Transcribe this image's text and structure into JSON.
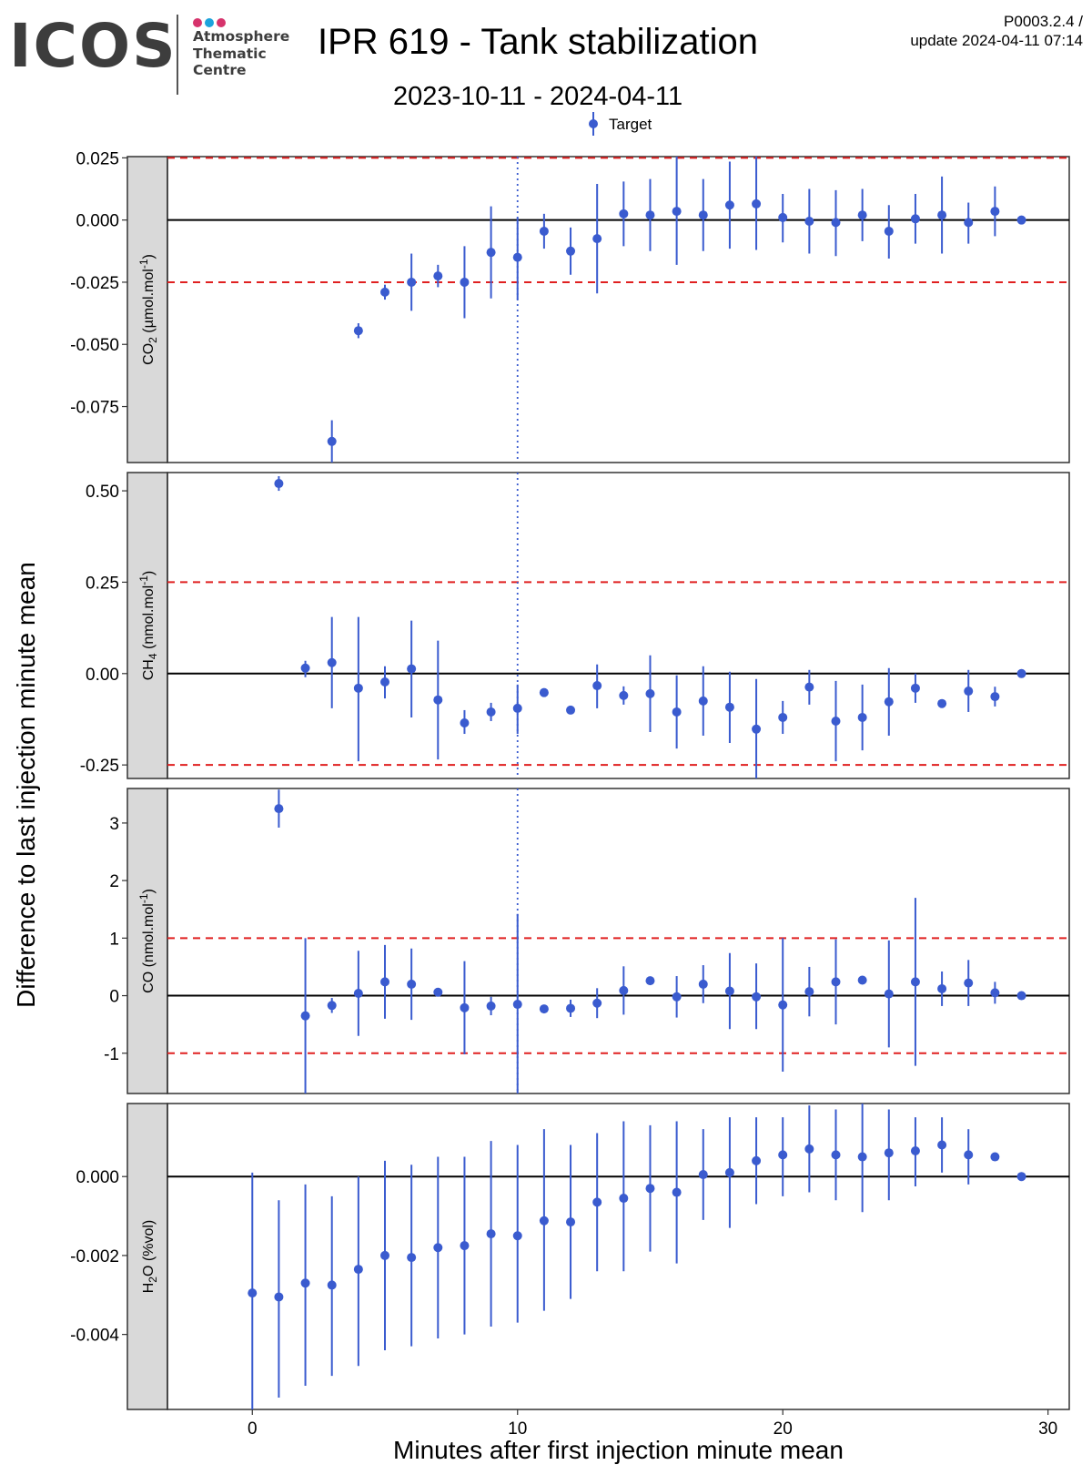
{
  "header": {
    "logo_text": "ICOS",
    "logo_lines": [
      "Atmosphere",
      "Thematic",
      "Centre"
    ],
    "logo_dot_colors": [
      "#d6336c",
      "#1ca3dc",
      "#d6336c"
    ],
    "title": "IPR 619 - Tank stabilization",
    "subtitle": "2023-10-11 - 2024-04-11",
    "code_line1": "P0003.2.4 /",
    "code_line2": "update  2024-04-11 07:14"
  },
  "chart_data": {
    "type": "scatter",
    "legend": {
      "label": "Target",
      "position": "top"
    },
    "xlabel": "Minutes after first injection minute mean",
    "ylabel": "Difference to last injection minute mean",
    "xlim": [
      -3.2,
      30.8
    ],
    "xticks": [
      0,
      10,
      20,
      30
    ],
    "vline_x": 10,
    "colors": {
      "points": "#3a5bcf",
      "threshold": "#e02020",
      "zero": "#000000",
      "strip": "#d9d9d9"
    },
    "panels": [
      {
        "strip": {
          "base": "CO",
          "sub": "2",
          "unit": " (µmol.mol",
          "sup": "-1",
          "close": ")"
        },
        "ylim": [
          -0.0975,
          0.0255
        ],
        "yticks": [
          0.025,
          0.0,
          -0.025,
          -0.05,
          -0.075
        ],
        "ytick_labels": [
          "0.025",
          "0.000",
          "-0.025",
          "-0.050",
          "-0.075"
        ],
        "thresholds": [
          0.025,
          -0.025
        ],
        "points": [
          {
            "x": 3,
            "y": -0.089,
            "lo": -0.0975,
            "hi": -0.0805
          },
          {
            "x": 4,
            "y": -0.0445,
            "lo": -0.0475,
            "hi": -0.0415
          },
          {
            "x": 5,
            "y": -0.029,
            "lo": -0.032,
            "hi": -0.026
          },
          {
            "x": 6,
            "y": -0.025,
            "lo": -0.0365,
            "hi": -0.0135
          },
          {
            "x": 7,
            "y": -0.0225,
            "lo": -0.027,
            "hi": -0.018
          },
          {
            "x": 8,
            "y": -0.025,
            "lo": -0.0395,
            "hi": -0.0105
          },
          {
            "x": 9,
            "y": -0.013,
            "lo": -0.0315,
            "hi": 0.0055
          },
          {
            "x": 10,
            "y": -0.015,
            "lo": -0.032,
            "hi": 0.001
          },
          {
            "x": 11,
            "y": -0.0045,
            "lo": -0.0115,
            "hi": 0.0025
          },
          {
            "x": 12,
            "y": -0.0125,
            "lo": -0.022,
            "hi": -0.003
          },
          {
            "x": 13,
            "y": -0.0075,
            "lo": -0.0295,
            "hi": 0.0145
          },
          {
            "x": 14,
            "y": 0.0025,
            "lo": -0.0105,
            "hi": 0.0155
          },
          {
            "x": 15,
            "y": 0.002,
            "lo": -0.0125,
            "hi": 0.0165
          },
          {
            "x": 16,
            "y": 0.0035,
            "lo": -0.018,
            "hi": 0.0255
          },
          {
            "x": 17,
            "y": 0.002,
            "lo": -0.0125,
            "hi": 0.0165
          },
          {
            "x": 18,
            "y": 0.006,
            "lo": -0.0115,
            "hi": 0.0235
          },
          {
            "x": 19,
            "y": 0.0065,
            "lo": -0.012,
            "hi": 0.0255
          },
          {
            "x": 20,
            "y": 0.001,
            "lo": -0.009,
            "hi": 0.0105
          },
          {
            "x": 21,
            "y": -0.0005,
            "lo": -0.0135,
            "hi": 0.0125
          },
          {
            "x": 22,
            "y": -0.001,
            "lo": -0.0145,
            "hi": 0.012
          },
          {
            "x": 23,
            "y": 0.002,
            "lo": -0.0085,
            "hi": 0.0125
          },
          {
            "x": 24,
            "y": -0.0045,
            "lo": -0.0155,
            "hi": 0.006
          },
          {
            "x": 25,
            "y": 0.0005,
            "lo": -0.0095,
            "hi": 0.0105
          },
          {
            "x": 26,
            "y": 0.002,
            "lo": -0.0135,
            "hi": 0.0175
          },
          {
            "x": 27,
            "y": -0.001,
            "lo": -0.0095,
            "hi": 0.007
          },
          {
            "x": 28,
            "y": 0.0035,
            "lo": -0.0065,
            "hi": 0.0135
          },
          {
            "x": 29,
            "y": 0.0,
            "lo": 0.0,
            "hi": 0.0
          }
        ]
      },
      {
        "strip": {
          "base": "CH",
          "sub": "4",
          "unit": " (nmol.mol",
          "sup": "-1",
          "close": ")"
        },
        "ylim": [
          -0.287,
          0.55
        ],
        "yticks": [
          0.5,
          0.25,
          0.0,
          -0.25
        ],
        "ytick_labels": [
          "0.50",
          "0.25",
          "0.00",
          "-0.25"
        ],
        "thresholds": [
          0.25,
          -0.25
        ],
        "points": [
          {
            "x": 1,
            "y": 0.52,
            "lo": 0.5,
            "hi": 0.54
          },
          {
            "x": 2,
            "y": 0.015,
            "lo": -0.01,
            "hi": 0.035
          },
          {
            "x": 3,
            "y": 0.03,
            "lo": -0.095,
            "hi": 0.155
          },
          {
            "x": 4,
            "y": -0.04,
            "lo": -0.24,
            "hi": 0.155
          },
          {
            "x": 5,
            "y": -0.023,
            "lo": -0.068,
            "hi": 0.02
          },
          {
            "x": 6,
            "y": 0.013,
            "lo": -0.12,
            "hi": 0.145
          },
          {
            "x": 7,
            "y": -0.072,
            "lo": -0.235,
            "hi": 0.09
          },
          {
            "x": 8,
            "y": -0.135,
            "lo": -0.165,
            "hi": -0.1
          },
          {
            "x": 9,
            "y": -0.105,
            "lo": -0.13,
            "hi": -0.08
          },
          {
            "x": 10,
            "y": -0.095,
            "lo": -0.165,
            "hi": -0.03
          },
          {
            "x": 11,
            "y": -0.052,
            "lo": -0.052,
            "hi": -0.052
          },
          {
            "x": 12,
            "y": -0.1,
            "lo": -0.1,
            "hi": -0.1
          },
          {
            "x": 13,
            "y": -0.033,
            "lo": -0.095,
            "hi": 0.025
          },
          {
            "x": 14,
            "y": -0.06,
            "lo": -0.085,
            "hi": -0.035
          },
          {
            "x": 15,
            "y": -0.055,
            "lo": -0.16,
            "hi": 0.05
          },
          {
            "x": 16,
            "y": -0.105,
            "lo": -0.205,
            "hi": -0.005
          },
          {
            "x": 17,
            "y": -0.075,
            "lo": -0.17,
            "hi": 0.02
          },
          {
            "x": 18,
            "y": -0.092,
            "lo": -0.19,
            "hi": 0.005
          },
          {
            "x": 19,
            "y": -0.152,
            "lo": -0.287,
            "hi": -0.015
          },
          {
            "x": 20,
            "y": -0.12,
            "lo": -0.165,
            "hi": -0.075
          },
          {
            "x": 21,
            "y": -0.037,
            "lo": -0.085,
            "hi": 0.01
          },
          {
            "x": 22,
            "y": -0.13,
            "lo": -0.24,
            "hi": -0.02
          },
          {
            "x": 23,
            "y": -0.12,
            "lo": -0.21,
            "hi": -0.03
          },
          {
            "x": 24,
            "y": -0.077,
            "lo": -0.17,
            "hi": 0.015
          },
          {
            "x": 25,
            "y": -0.04,
            "lo": -0.08,
            "hi": 0.0
          },
          {
            "x": 26,
            "y": -0.082,
            "lo": -0.082,
            "hi": -0.082
          },
          {
            "x": 27,
            "y": -0.048,
            "lo": -0.105,
            "hi": 0.01
          },
          {
            "x": 28,
            "y": -0.063,
            "lo": -0.09,
            "hi": -0.036
          },
          {
            "x": 29,
            "y": 0.0,
            "lo": 0.0,
            "hi": 0.0
          }
        ]
      },
      {
        "strip": {
          "base": "CO",
          "sub": "",
          "unit": " (nmol.mol",
          "sup": "-1",
          "close": ")"
        },
        "ylim": [
          -1.7,
          3.6
        ],
        "yticks": [
          3,
          2,
          1,
          0,
          -1
        ],
        "ytick_labels": [
          "3",
          "2",
          "1",
          "0",
          "-1"
        ],
        "thresholds": [
          1,
          -1
        ],
        "points": [
          {
            "x": 1,
            "y": 3.25,
            "lo": 2.92,
            "hi": 3.58
          },
          {
            "x": 2,
            "y": -0.35,
            "lo": -1.7,
            "hi": 1.0
          },
          {
            "x": 3,
            "y": -0.17,
            "lo": -0.3,
            "hi": -0.04
          },
          {
            "x": 4,
            "y": 0.04,
            "lo": -0.7,
            "hi": 0.78
          },
          {
            "x": 5,
            "y": 0.24,
            "lo": -0.4,
            "hi": 0.88
          },
          {
            "x": 6,
            "y": 0.2,
            "lo": -0.42,
            "hi": 0.82
          },
          {
            "x": 7,
            "y": 0.06,
            "lo": 0.06,
            "hi": 0.06
          },
          {
            "x": 8,
            "y": -0.21,
            "lo": -1.02,
            "hi": 0.6
          },
          {
            "x": 9,
            "y": -0.18,
            "lo": -0.34,
            "hi": -0.02
          },
          {
            "x": 10,
            "y": -0.15,
            "lo": -1.7,
            "hi": 1.42
          },
          {
            "x": 11,
            "y": -0.23,
            "lo": -0.3,
            "hi": -0.16
          },
          {
            "x": 12,
            "y": -0.22,
            "lo": -0.37,
            "hi": -0.07
          },
          {
            "x": 13,
            "y": -0.13,
            "lo": -0.39,
            "hi": 0.13
          },
          {
            "x": 14,
            "y": 0.09,
            "lo": -0.33,
            "hi": 0.51
          },
          {
            "x": 15,
            "y": 0.26,
            "lo": 0.26,
            "hi": 0.26
          },
          {
            "x": 16,
            "y": -0.02,
            "lo": -0.38,
            "hi": 0.34
          },
          {
            "x": 17,
            "y": 0.2,
            "lo": -0.13,
            "hi": 0.53
          },
          {
            "x": 18,
            "y": 0.08,
            "lo": -0.58,
            "hi": 0.74
          },
          {
            "x": 19,
            "y": -0.02,
            "lo": -0.58,
            "hi": 0.56
          },
          {
            "x": 20,
            "y": -0.16,
            "lo": -1.32,
            "hi": 1.0
          },
          {
            "x": 21,
            "y": 0.07,
            "lo": -0.36,
            "hi": 0.5
          },
          {
            "x": 22,
            "y": 0.24,
            "lo": -0.5,
            "hi": 0.98
          },
          {
            "x": 23,
            "y": 0.27,
            "lo": 0.27,
            "hi": 0.27
          },
          {
            "x": 24,
            "y": 0.03,
            "lo": -0.9,
            "hi": 0.96
          },
          {
            "x": 25,
            "y": 0.24,
            "lo": -1.22,
            "hi": 1.7
          },
          {
            "x": 26,
            "y": 0.12,
            "lo": -0.18,
            "hi": 0.42
          },
          {
            "x": 27,
            "y": 0.22,
            "lo": -0.18,
            "hi": 0.62
          },
          {
            "x": 28,
            "y": 0.05,
            "lo": -0.14,
            "hi": 0.24
          },
          {
            "x": 29,
            "y": 0.0,
            "lo": 0.0,
            "hi": 0.0
          }
        ]
      },
      {
        "strip": {
          "base": "H",
          "sub": "2",
          "unit": "O (%vol)",
          "sup": "",
          "close": ""
        },
        "ylim": [
          -0.0059,
          0.00185
        ],
        "yticks": [
          0.0,
          -0.002,
          -0.004
        ],
        "ytick_labels": [
          "0.000",
          "-0.002",
          "-0.004"
        ],
        "thresholds": [],
        "points": [
          {
            "x": 0,
            "y": -0.00295,
            "lo": -0.0059,
            "hi": 0.0001
          },
          {
            "x": 1,
            "y": -0.00305,
            "lo": -0.0056,
            "hi": -0.0006
          },
          {
            "x": 2,
            "y": -0.0027,
            "lo": -0.0053,
            "hi": -0.0002
          },
          {
            "x": 3,
            "y": -0.00275,
            "lo": -0.00505,
            "hi": -0.0005
          },
          {
            "x": 4,
            "y": -0.00235,
            "lo": -0.0048,
            "hi": 0.0
          },
          {
            "x": 5,
            "y": -0.002,
            "lo": -0.0044,
            "hi": 0.0004
          },
          {
            "x": 6,
            "y": -0.00205,
            "lo": -0.0043,
            "hi": 0.0003
          },
          {
            "x": 7,
            "y": -0.0018,
            "lo": -0.0041,
            "hi": 0.0005
          },
          {
            "x": 8,
            "y": -0.00175,
            "lo": -0.004,
            "hi": 0.0005
          },
          {
            "x": 9,
            "y": -0.00145,
            "lo": -0.0038,
            "hi": 0.0009
          },
          {
            "x": 10,
            "y": -0.0015,
            "lo": -0.0037,
            "hi": 0.0008
          },
          {
            "x": 11,
            "y": -0.00112,
            "lo": -0.0034,
            "hi": 0.0012
          },
          {
            "x": 12,
            "y": -0.00115,
            "lo": -0.0031,
            "hi": 0.0008
          },
          {
            "x": 13,
            "y": -0.00065,
            "lo": -0.0024,
            "hi": 0.0011
          },
          {
            "x": 14,
            "y": -0.00055,
            "lo": -0.0024,
            "hi": 0.0014
          },
          {
            "x": 15,
            "y": -0.0003,
            "lo": -0.0019,
            "hi": 0.0013
          },
          {
            "x": 16,
            "y": -0.0004,
            "lo": -0.0022,
            "hi": 0.0014
          },
          {
            "x": 17,
            "y": 5e-05,
            "lo": -0.0011,
            "hi": 0.0012
          },
          {
            "x": 18,
            "y": 0.0001,
            "lo": -0.0013,
            "hi": 0.0015
          },
          {
            "x": 19,
            "y": 0.0004,
            "lo": -0.0007,
            "hi": 0.0015
          },
          {
            "x": 20,
            "y": 0.00055,
            "lo": -0.0005,
            "hi": 0.0015
          },
          {
            "x": 21,
            "y": 0.0007,
            "lo": -0.0004,
            "hi": 0.0018
          },
          {
            "x": 22,
            "y": 0.00055,
            "lo": -0.0006,
            "hi": 0.0017
          },
          {
            "x": 23,
            "y": 0.0005,
            "lo": -0.0009,
            "hi": 0.00185
          },
          {
            "x": 24,
            "y": 0.0006,
            "lo": -0.0006,
            "hi": 0.0017
          },
          {
            "x": 25,
            "y": 0.00065,
            "lo": -0.00025,
            "hi": 0.0015
          },
          {
            "x": 26,
            "y": 0.0008,
            "lo": 0.0001,
            "hi": 0.0015
          },
          {
            "x": 27,
            "y": 0.00055,
            "lo": -0.0002,
            "hi": 0.0012
          },
          {
            "x": 28,
            "y": 0.0005,
            "lo": 0.0004,
            "hi": 0.0006
          },
          {
            "x": 29,
            "y": 0.0,
            "lo": 0.0,
            "hi": 0.0
          }
        ]
      }
    ]
  }
}
